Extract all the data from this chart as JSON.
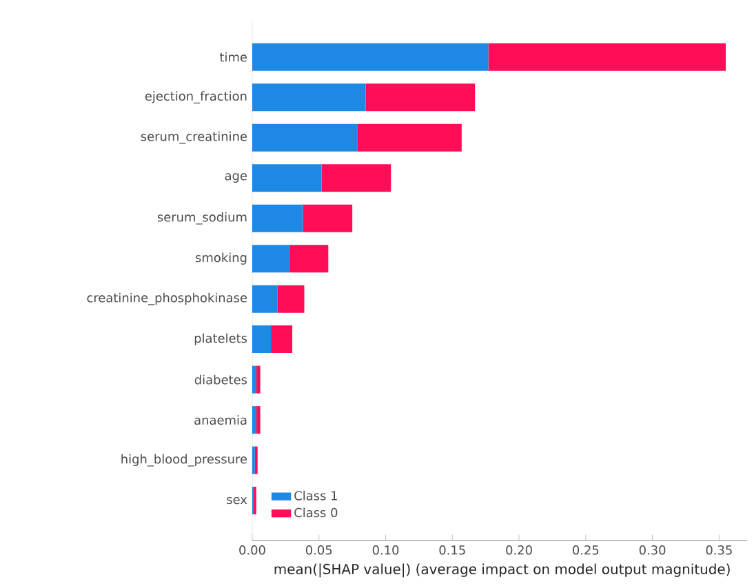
{
  "chart_data": {
    "type": "bar",
    "orientation": "horizontal",
    "stacked": true,
    "xlabel": "mean(|SHAP value|) (average impact on model output magnitude)",
    "categories": [
      "time",
      "ejection_fraction",
      "serum_creatinine",
      "age",
      "serum_sodium",
      "smoking",
      "creatinine_phosphokinase",
      "platelets",
      "diabetes",
      "anaemia",
      "high_blood_pressure",
      "sex"
    ],
    "series": [
      {
        "name": "Class 1",
        "color": "#1e88e5",
        "values": [
          0.177,
          0.085,
          0.079,
          0.052,
          0.038,
          0.028,
          0.019,
          0.014,
          0.003,
          0.003,
          0.002,
          0.001
        ]
      },
      {
        "name": "Class 0",
        "color": "#ff0d57",
        "values": [
          0.178,
          0.082,
          0.078,
          0.052,
          0.037,
          0.029,
          0.02,
          0.016,
          0.003,
          0.003,
          0.002,
          0.002
        ]
      }
    ],
    "xlim": [
      0,
      0.371
    ],
    "xticks": [
      {
        "value": 0,
        "label": "0.00"
      },
      {
        "value": 0.05,
        "label": "0.05"
      },
      {
        "value": 0.1,
        "label": "0.10"
      },
      {
        "value": 0.15,
        "label": "0.15"
      },
      {
        "value": 0.2,
        "label": "0.20"
      },
      {
        "value": 0.25,
        "label": "0.25"
      },
      {
        "value": 0.3,
        "label": "0.30"
      },
      {
        "value": 0.35,
        "label": "0.35"
      }
    ],
    "legend": "bottom left",
    "grid": false
  }
}
